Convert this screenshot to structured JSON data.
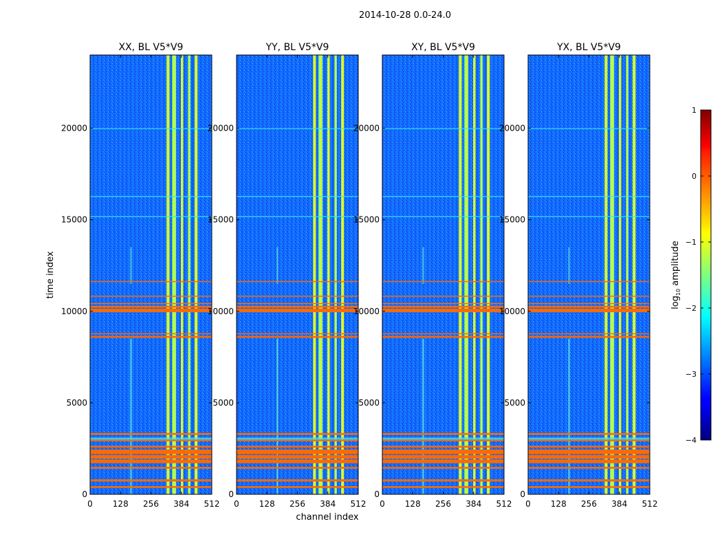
{
  "suptitle": "2014-10-28 0.0-24.0",
  "chart_data": {
    "type": "heatmap",
    "xlabel": "channel index",
    "ylabel": "time index",
    "xlim": [
      0,
      512
    ],
    "ylim": [
      0,
      24000
    ],
    "xticks": [
      0,
      128,
      256,
      384,
      512
    ],
    "yticks": [
      0,
      5000,
      10000,
      15000,
      20000
    ],
    "panels": [
      {
        "title": "XX, BL V5*V9"
      },
      {
        "title": "YY, BL V5*V9"
      },
      {
        "title": "XY, BL V5*V9"
      },
      {
        "title": "YX, BL V5*V9"
      }
    ],
    "colorbar": {
      "label_prefix": "log",
      "label_sub": "10",
      "label_suffix": " amplitude",
      "range": [
        -4,
        1
      ],
      "ticks": [
        "1",
        "0",
        "−1",
        "−2",
        "−3",
        "−4"
      ],
      "colormap": "jet"
    },
    "features": {
      "flagged_time_bands": [
        [
          350,
          450
        ],
        [
          700,
          820
        ],
        [
          1400,
          1500
        ],
        [
          1700,
          1900
        ],
        [
          1950,
          2150
        ],
        [
          2200,
          2450
        ],
        [
          2550,
          2650
        ],
        [
          2900,
          3000
        ],
        [
          3250,
          3350
        ],
        [
          8550,
          8650
        ],
        [
          8750,
          8800
        ],
        [
          9950,
          10150
        ],
        [
          10200,
          10300
        ],
        [
          10400,
          10450
        ],
        [
          10800,
          10850
        ],
        [
          11600,
          11650
        ]
      ],
      "rfi_channel_bands": [
        [
          322,
          334
        ],
        [
          345,
          362
        ],
        [
          382,
          392
        ],
        [
          412,
          422
        ],
        [
          440,
          452
        ]
      ],
      "rfi_spike_channel": 172
    }
  }
}
